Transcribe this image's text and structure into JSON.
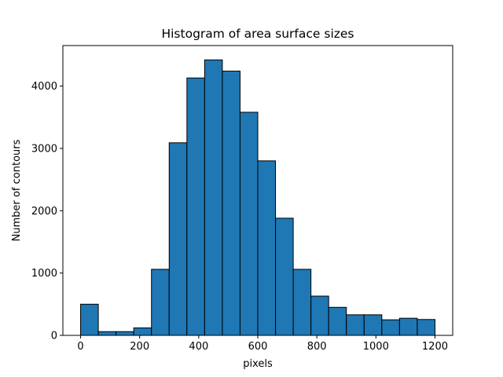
{
  "chart_data": {
    "type": "bar",
    "subtype": "histogram",
    "title": "Histogram of area surface sizes",
    "xlabel": "pixels",
    "ylabel": "Number of contours",
    "bins": [
      {
        "x0": 0,
        "x1": 60,
        "count": 500
      },
      {
        "x0": 60,
        "x1": 120,
        "count": 60
      },
      {
        "x0": 120,
        "x1": 180,
        "count": 60
      },
      {
        "x0": 180,
        "x1": 240,
        "count": 120
      },
      {
        "x0": 240,
        "x1": 300,
        "count": 1060
      },
      {
        "x0": 300,
        "x1": 360,
        "count": 3090
      },
      {
        "x0": 360,
        "x1": 420,
        "count": 4130
      },
      {
        "x0": 420,
        "x1": 480,
        "count": 4420
      },
      {
        "x0": 480,
        "x1": 540,
        "count": 4240
      },
      {
        "x0": 540,
        "x1": 600,
        "count": 3580
      },
      {
        "x0": 600,
        "x1": 660,
        "count": 2800
      },
      {
        "x0": 660,
        "x1": 720,
        "count": 1880
      },
      {
        "x0": 720,
        "x1": 780,
        "count": 1060
      },
      {
        "x0": 780,
        "x1": 840,
        "count": 630
      },
      {
        "x0": 840,
        "x1": 900,
        "count": 450
      },
      {
        "x0": 900,
        "x1": 960,
        "count": 330
      },
      {
        "x0": 960,
        "x1": 1020,
        "count": 330
      },
      {
        "x0": 1020,
        "x1": 1080,
        "count": 250
      },
      {
        "x0": 1080,
        "x1": 1140,
        "count": 275
      },
      {
        "x0": 1140,
        "x1": 1200,
        "count": 255
      }
    ],
    "xlim": [
      -60,
      1260
    ],
    "ylim": [
      0,
      4650
    ],
    "xticks": [
      0,
      200,
      400,
      600,
      800,
      1000,
      1200
    ],
    "yticks": [
      0,
      1000,
      2000,
      3000,
      4000
    ],
    "bar_color": "#1f77b4",
    "edge_color": "#000000",
    "grid": false,
    "legend": "none"
  }
}
